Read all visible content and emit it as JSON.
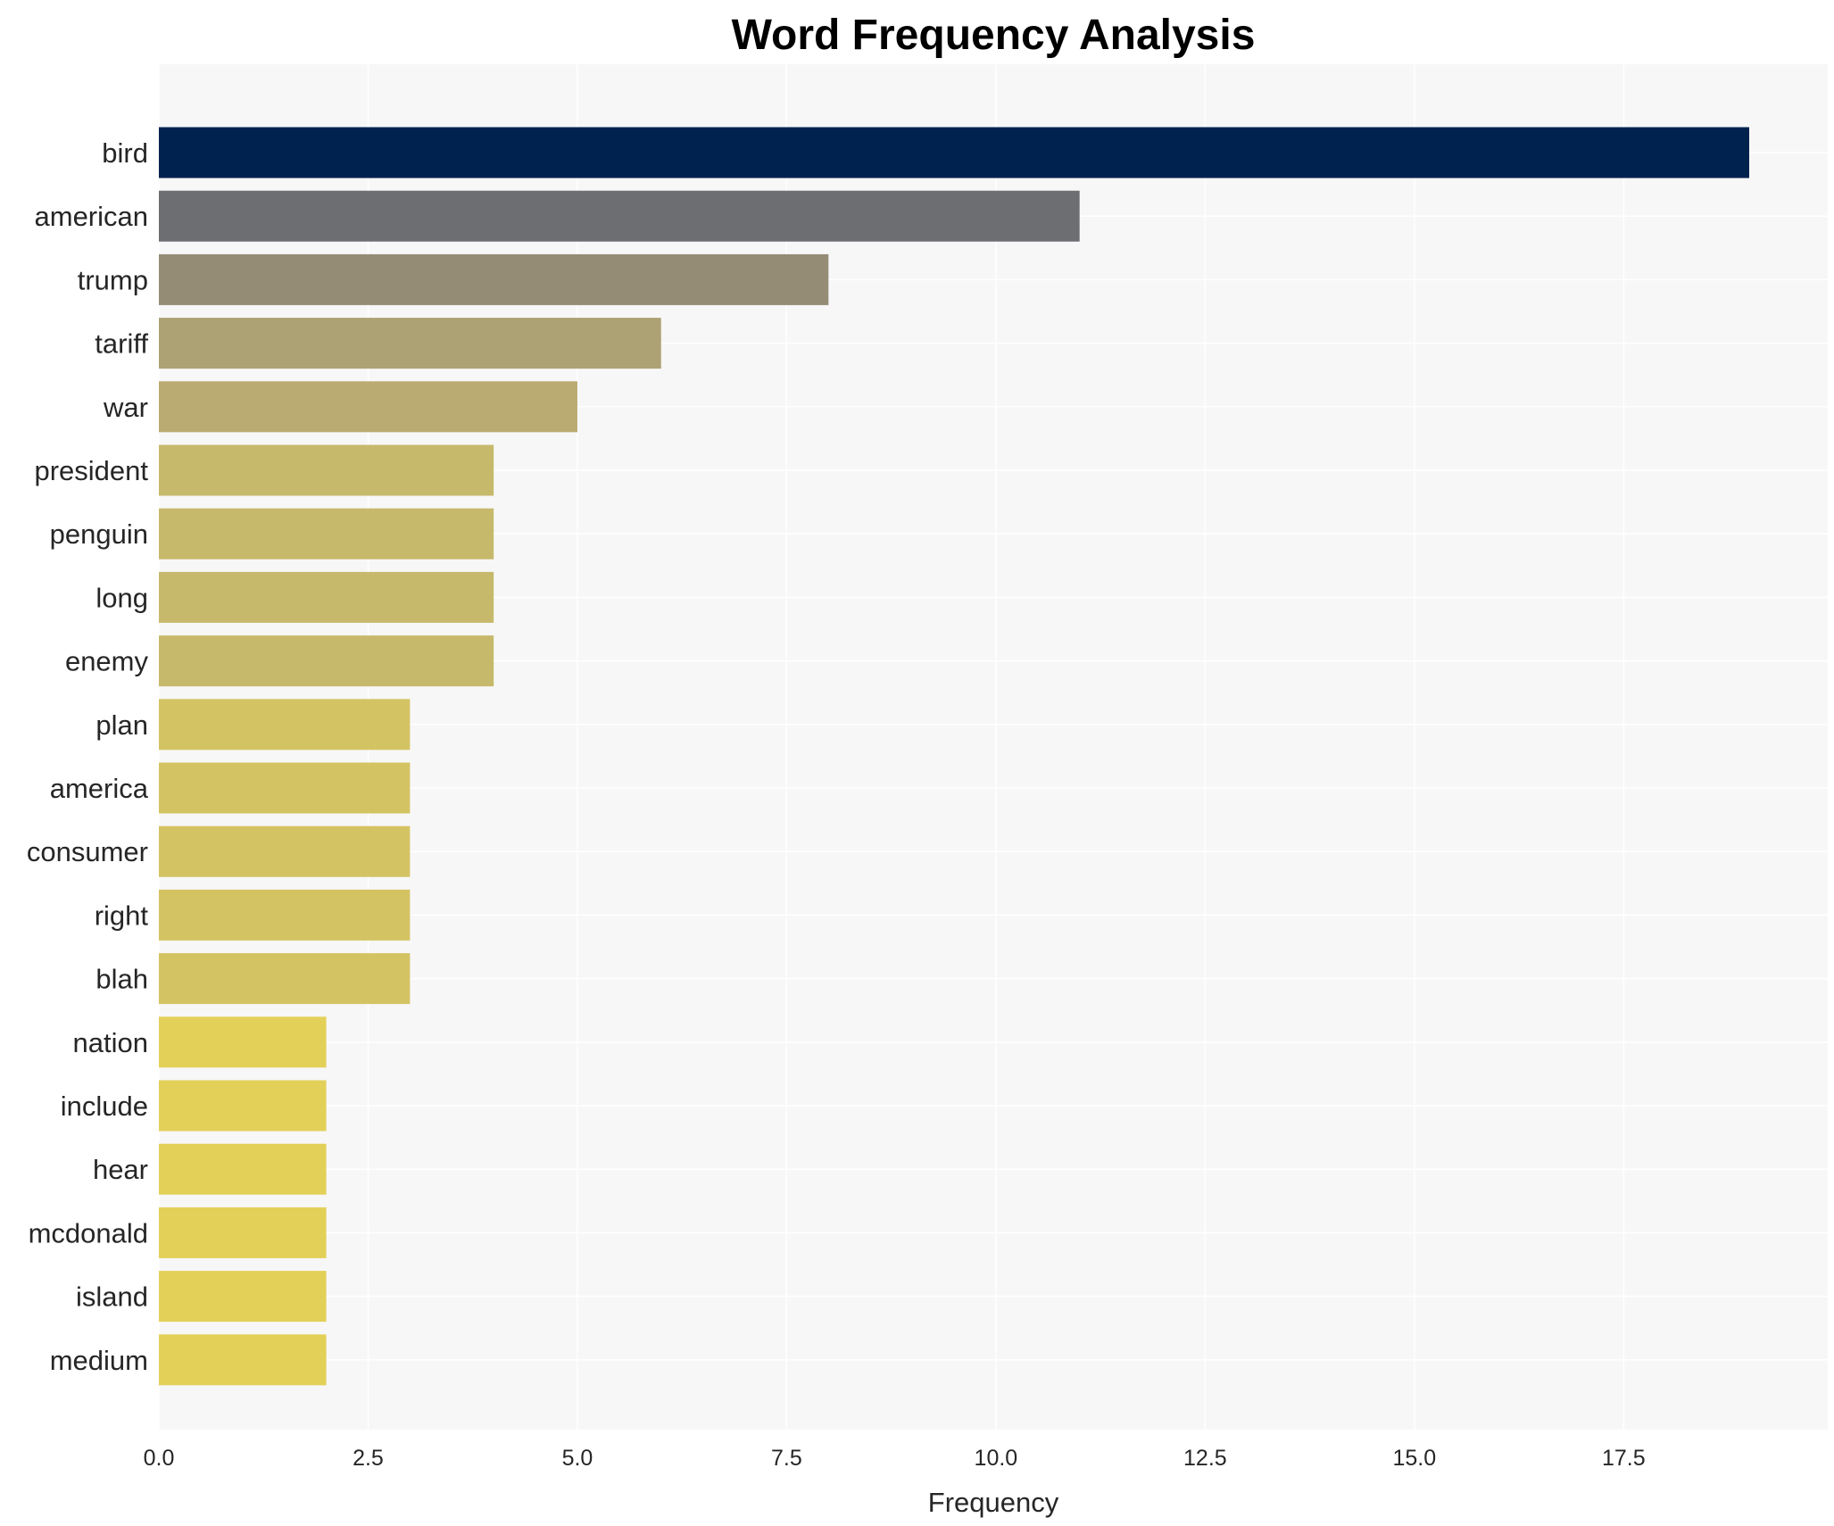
{
  "chart_data": {
    "type": "bar",
    "orientation": "horizontal",
    "title": "Word Frequency Analysis",
    "xlabel": "Frequency",
    "ylabel": "",
    "xlim": [
      0,
      20
    ],
    "x_ticks": [
      0,
      2.5,
      5,
      7.5,
      10,
      12.5,
      15,
      17.5
    ],
    "x_tick_labels": [
      "0.0",
      "2.5",
      "5.0",
      "7.5",
      "10.0",
      "12.5",
      "15.0",
      "17.5"
    ],
    "grid": true,
    "background": "#f7f7f7",
    "categories": [
      "bird",
      "american",
      "trump",
      "tariff",
      "war",
      "president",
      "penguin",
      "long",
      "enemy",
      "plan",
      "america",
      "consumer",
      "right",
      "blah",
      "nation",
      "include",
      "hear",
      "mcdonald",
      "island",
      "medium"
    ],
    "values": [
      19,
      11,
      8,
      6,
      5,
      4,
      4,
      4,
      4,
      3,
      3,
      3,
      3,
      3,
      2,
      2,
      2,
      2,
      2,
      2
    ],
    "colors": [
      "#00224e",
      "#6c6e72",
      "#958c76",
      "#ada274",
      "#b9ab71",
      "#c7b96b",
      "#c7b96b",
      "#c7b96b",
      "#c7b96b",
      "#d4c363",
      "#d4c363",
      "#d4c363",
      "#d4c363",
      "#d4c363",
      "#e3d058",
      "#e3d058",
      "#e3d058",
      "#e3d058",
      "#e3d058",
      "#e3d058"
    ]
  }
}
